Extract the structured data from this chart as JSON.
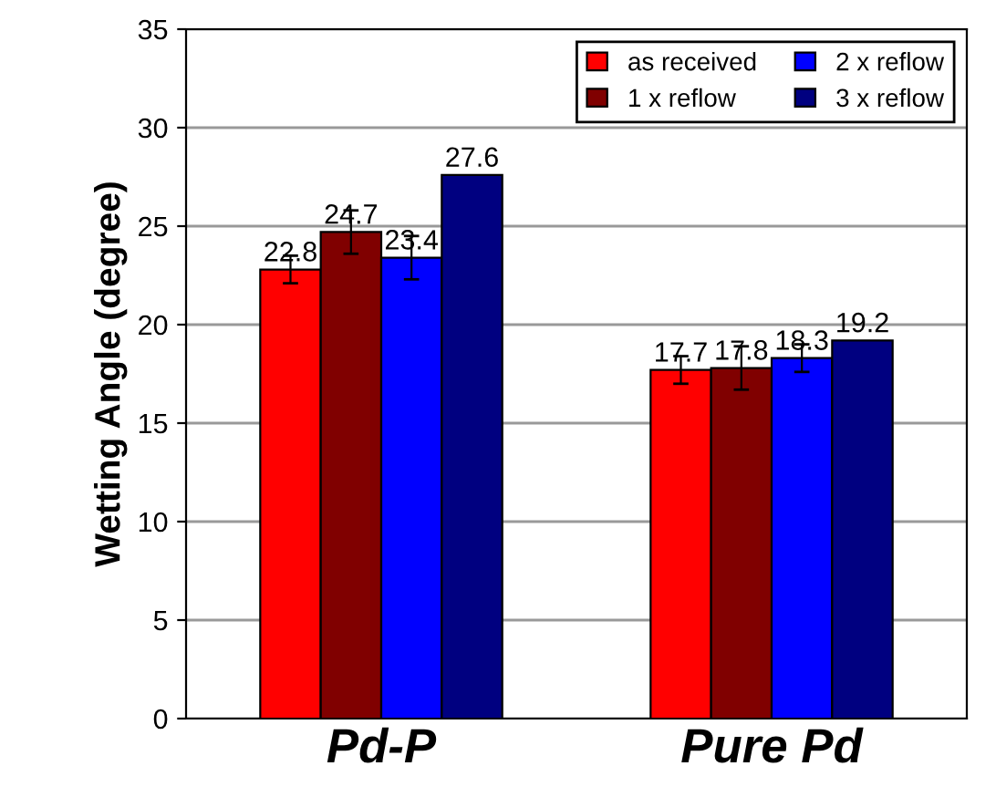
{
  "chart_data": {
    "type": "bar",
    "ylabel": "Wetting Angle (degree)",
    "categories": [
      "Pd-P",
      "Pure Pd"
    ],
    "series": [
      {
        "name": "as received",
        "color": "#ff0000",
        "values": [
          22.8,
          17.7
        ],
        "errors": [
          0.7,
          0.7
        ]
      },
      {
        "name": "1 x reflow",
        "color": "#800000",
        "values": [
          24.7,
          17.8
        ],
        "errors": [
          1.1,
          1.1
        ]
      },
      {
        "name": "2 x reflow",
        "color": "#0000ff",
        "values": [
          23.4,
          18.3
        ],
        "errors": [
          1.1,
          0.7
        ]
      },
      {
        "name": "3 x reflow",
        "color": "#000080",
        "values": [
          27.6,
          19.2
        ],
        "errors": [
          null,
          null
        ]
      }
    ],
    "ylim": [
      0,
      35
    ],
    "yticks": [
      0,
      5,
      10,
      15,
      20,
      25,
      30,
      35
    ],
    "grid": "y",
    "legend": "top right",
    "data_labels": true
  }
}
